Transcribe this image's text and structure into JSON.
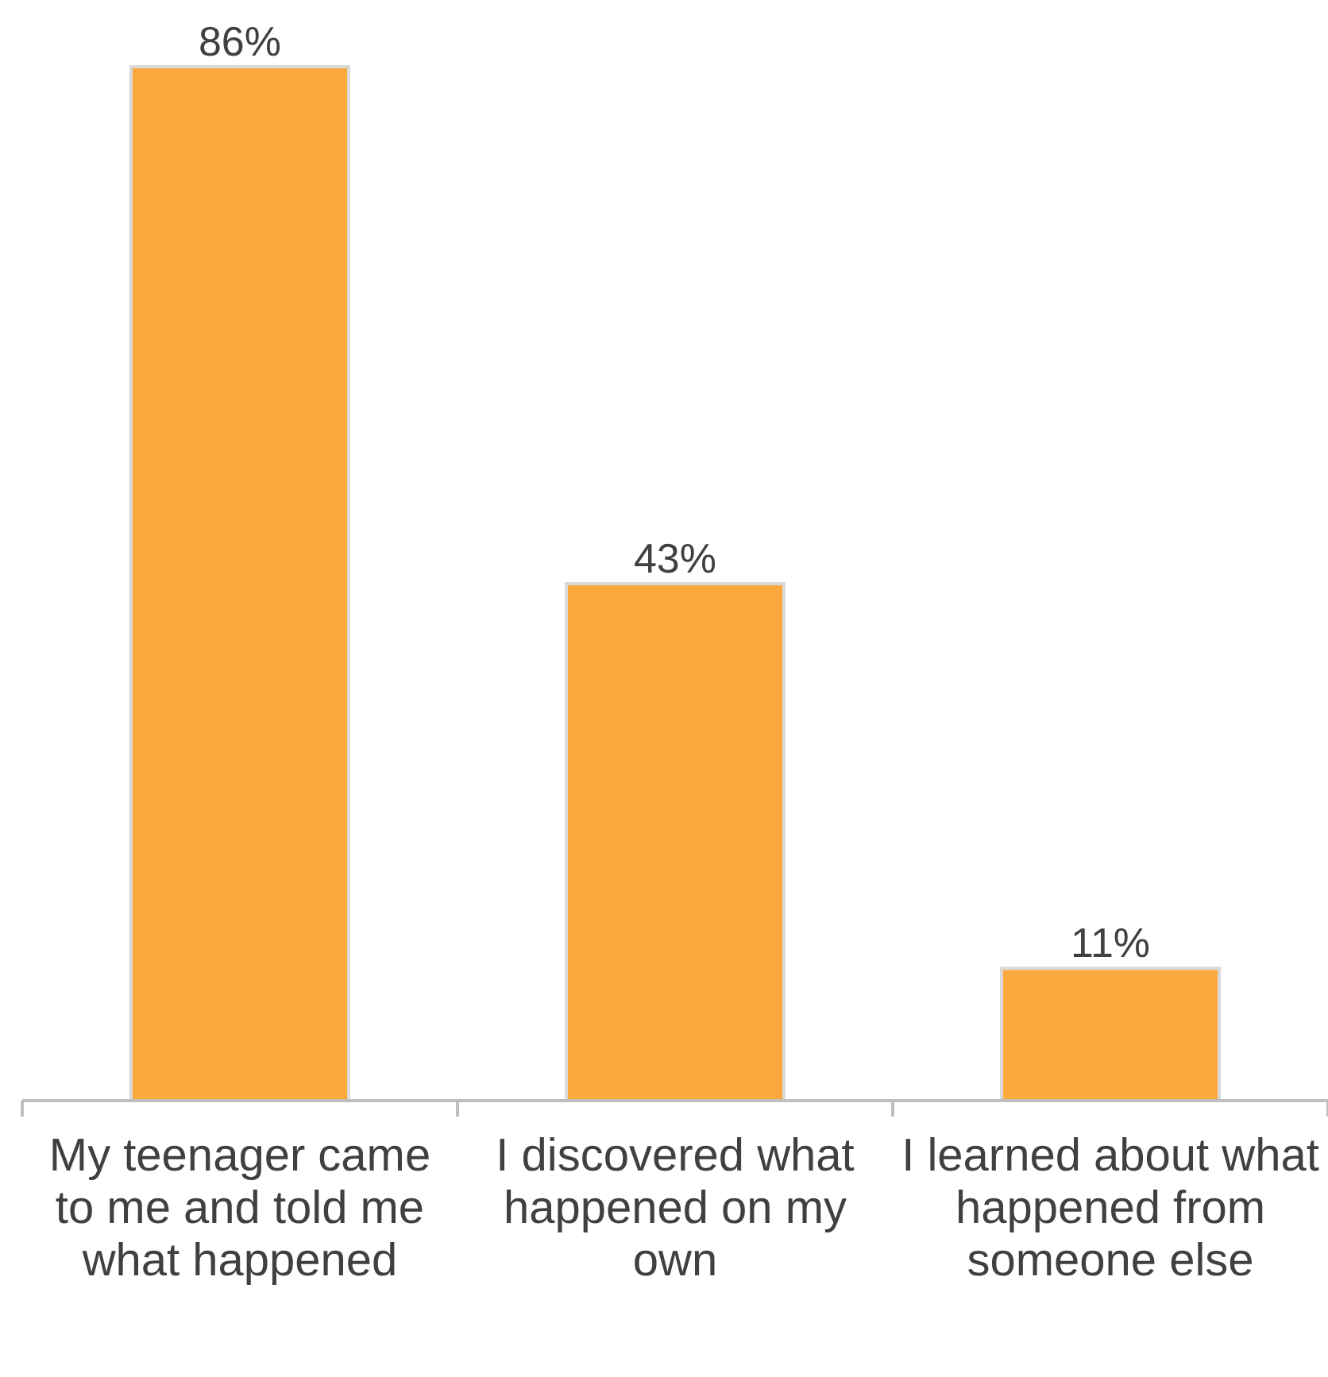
{
  "chart_data": {
    "type": "bar",
    "categories": [
      "My teenager came to me and told me what happened",
      "I discovered what happened on my own",
      "I learned about what happened from someone else"
    ],
    "values": [
      86,
      43,
      11
    ],
    "value_labels": [
      "86%",
      "43%",
      "11%"
    ],
    "color": "#fba83f"
  }
}
